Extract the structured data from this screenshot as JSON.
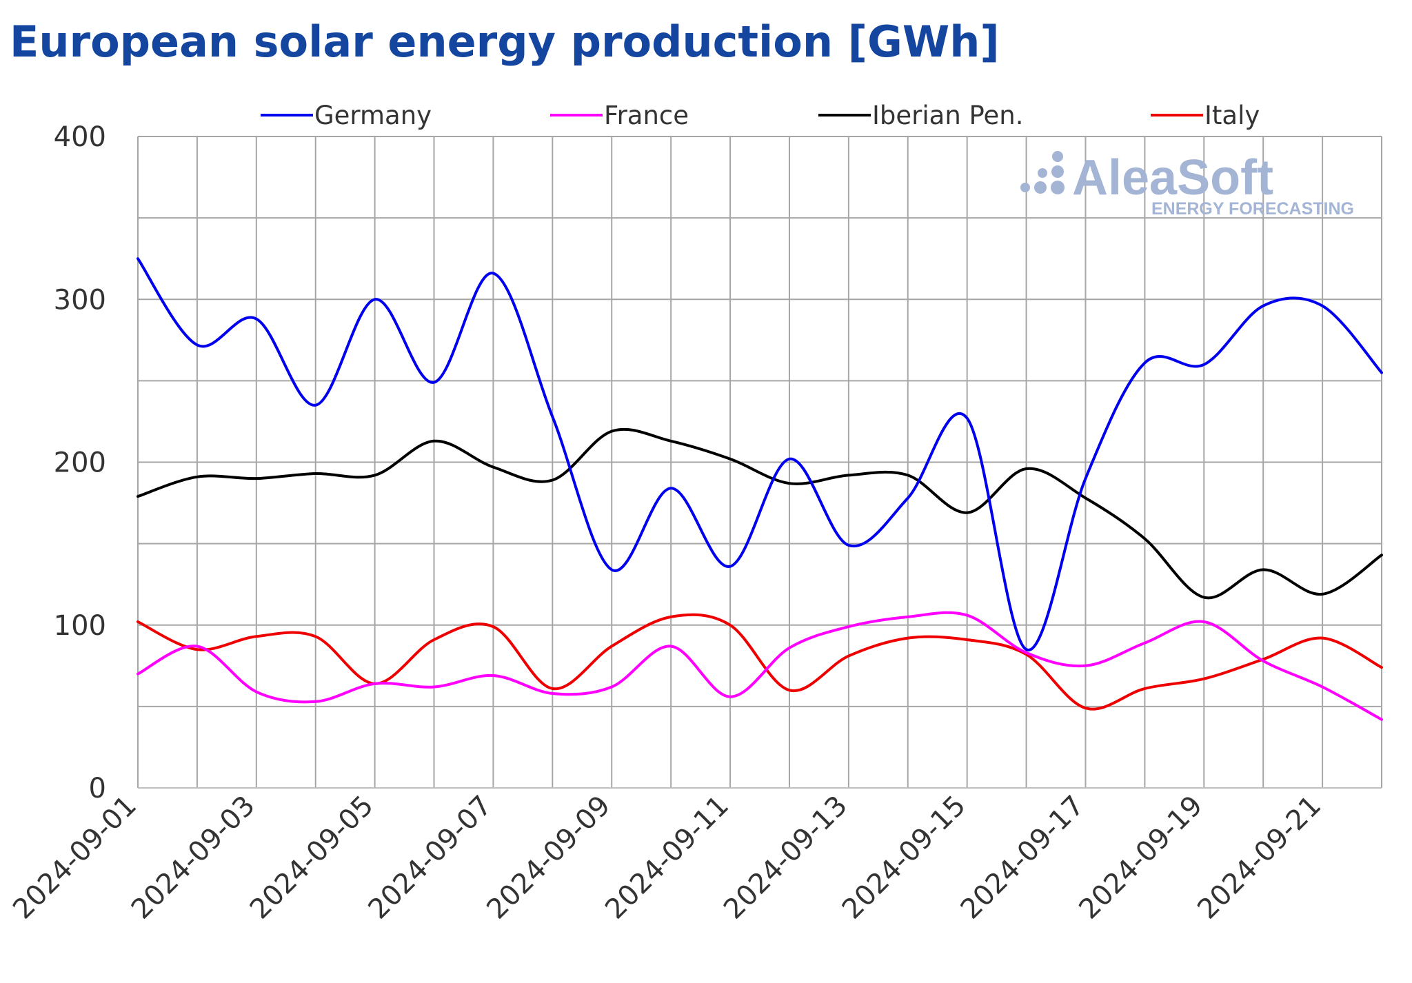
{
  "chart_data": {
    "type": "line",
    "title": "European solar energy production [GWh]",
    "xlabel": "",
    "ylabel": "",
    "ylim": [
      0,
      400
    ],
    "yticks": [
      0,
      100,
      200,
      300,
      400
    ],
    "x": [
      "2024-09-01",
      "2024-09-02",
      "2024-09-03",
      "2024-09-04",
      "2024-09-05",
      "2024-09-06",
      "2024-09-07",
      "2024-09-08",
      "2024-09-09",
      "2024-09-10",
      "2024-09-11",
      "2024-09-12",
      "2024-09-13",
      "2024-09-14",
      "2024-09-15",
      "2024-09-16",
      "2024-09-17",
      "2024-09-18",
      "2024-09-19",
      "2024-09-20",
      "2024-09-21",
      "2024-09-22"
    ],
    "xtick_labels": [
      "2024-09-01",
      "2024-09-03",
      "2024-09-05",
      "2024-09-07",
      "2024-09-09",
      "2024-09-11",
      "2024-09-13",
      "2024-09-15",
      "2024-09-17",
      "2024-09-19",
      "2024-09-21"
    ],
    "grid": true,
    "legend_position": "top",
    "series": [
      {
        "name": "Germany",
        "color": "#0000ee",
        "values": [
          325,
          272,
          288,
          235,
          300,
          249,
          316,
          228,
          134,
          184,
          136,
          202,
          149,
          178,
          227,
          85,
          190,
          261,
          260,
          296,
          296,
          255
        ]
      },
      {
        "name": "France",
        "color": "#ff00ff",
        "values": [
          70,
          87,
          59,
          53,
          64,
          62,
          69,
          58,
          62,
          87,
          56,
          86,
          99,
          105,
          106,
          83,
          75,
          89,
          102,
          78,
          62,
          42
        ]
      },
      {
        "name": "Iberian Pen.",
        "color": "#000000",
        "values": [
          179,
          191,
          190,
          193,
          192,
          213,
          197,
          189,
          219,
          213,
          202,
          187,
          192,
          192,
          169,
          196,
          178,
          153,
          117,
          134,
          119,
          143
        ]
      },
      {
        "name": "Italy",
        "color": "#ee0000",
        "values": [
          102,
          85,
          93,
          93,
          64,
          91,
          99,
          61,
          87,
          105,
          100,
          60,
          81,
          92,
          91,
          82,
          49,
          61,
          67,
          79,
          92,
          74
        ]
      }
    ]
  },
  "watermark": {
    "brand": "AleaSoft",
    "tagline": "ENERGY FORECASTING",
    "color": "#a4b4d4"
  },
  "colors": {
    "title": "#1446a0",
    "grid": "#a6a6a6",
    "axis_text": "#333333"
  }
}
